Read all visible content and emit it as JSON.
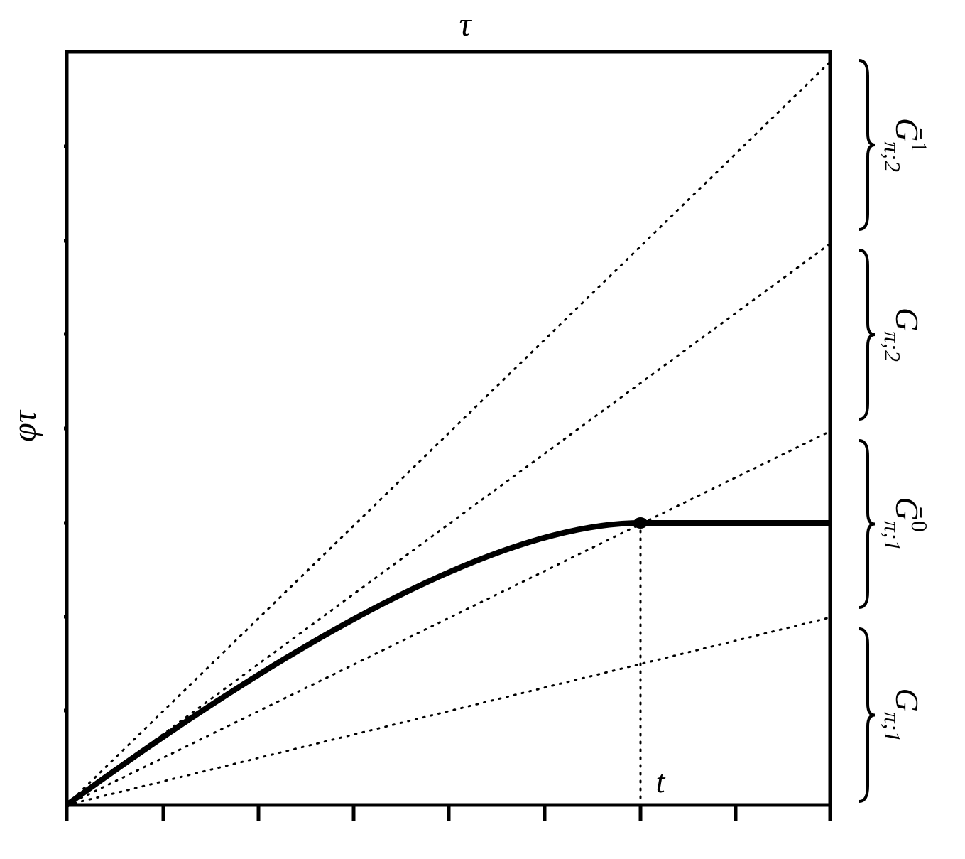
{
  "axes": {
    "x_label": "τ",
    "y_label": "φτ",
    "marker_label": "t"
  },
  "regions": [
    {
      "base": "Ḡ",
      "sup": "1",
      "sub": "π;2"
    },
    {
      "base": "G",
      "sub": "π;2"
    },
    {
      "base": "Ḡ",
      "sup": "0",
      "sub": "π;1"
    },
    {
      "base": "G",
      "sub": "π;1"
    }
  ]
}
